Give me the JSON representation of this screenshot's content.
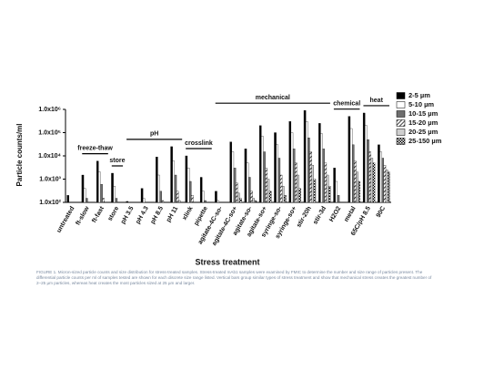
{
  "chart_data": {
    "type": "bar",
    "y_label": "Particle counts/ml",
    "x_label": "Stress treatment",
    "log_scale": true,
    "legend": "right",
    "annotations": [
      "freeze-thaw",
      "store",
      "pH",
      "crosslink",
      "mechanical",
      "chemical",
      "heat"
    ],
    "caption": "FIGURE 1. Micron-sized particle counts and size distribution for stress-treated samples. Stress-treated mAb1 samples were examined by FMIC to determine the number and size range of particles present. The differential particle counts per ml of samples tested are shown for each discrete size range listed. Vertical bars group similar types of stress treatment and show that mechanical stress creates the greatest number of 2–25 µm particles, whereas heat creates the most particles sized at 25 µm and larger.",
    "categories": [
      "untreated",
      "ft-slow",
      "ft-fast",
      "store",
      "pH 3.5",
      "pH 4.3",
      "pH 8.5",
      "pH 11",
      "xlink",
      "pipette",
      "agitate-4C-so-",
      "agitate-4C-so+",
      "agitate-so-",
      "agitate-so+",
      "syringe-so-",
      "syringe-so+",
      "stir-20h",
      "stir-3d",
      "H2O2",
      "metal",
      "65C/pH 8.5",
      "90C"
    ],
    "ylim": [
      100,
      1000000
    ],
    "yticks": [
      {
        "value": 100,
        "label": "1.0x10²"
      },
      {
        "value": 1000,
        "label": "1.0x10³"
      },
      {
        "value": 10000,
        "label": "1.0x10⁴"
      },
      {
        "value": 100000,
        "label": "1.0x10⁵"
      },
      {
        "value": 1000000,
        "label": "1.0x10⁶"
      }
    ],
    "series": [
      {
        "name": "2-5 µm",
        "color": "#000000",
        "pattern": "solid",
        "values": [
          200,
          1500,
          6000,
          1800,
          110,
          400,
          9000,
          25000,
          10000,
          1200,
          300,
          40000,
          20000,
          200000,
          100000,
          300000,
          900000,
          250000,
          3000,
          500000,
          700000,
          30000
        ]
      },
      {
        "name": "5-10 µm",
        "color": "#ffffff",
        "pattern": "solid",
        "values": [
          null,
          400,
          2000,
          500,
          null,
          150,
          1500,
          6000,
          3000,
          300,
          120,
          15000,
          5000,
          70000,
          30000,
          100000,
          300000,
          90000,
          800,
          150000,
          200000,
          15000
        ]
      },
      {
        "name": "10-15 µm",
        "color": "#6e6e6e",
        "pattern": "solid",
        "values": [
          null,
          150,
          600,
          150,
          null,
          null,
          300,
          1500,
          800,
          120,
          null,
          3000,
          1200,
          15000,
          8000,
          20000,
          60000,
          20000,
          200,
          30000,
          50000,
          8000
        ]
      },
      {
        "name": "15-20 µm",
        "color": "#555555",
        "pattern": "hatch",
        "values": [
          null,
          null,
          150,
          null,
          null,
          null,
          120,
          300,
          200,
          null,
          null,
          700,
          300,
          3000,
          1500,
          5000,
          15000,
          5000,
          null,
          6000,
          15000,
          4000
        ]
      },
      {
        "name": "20-25 µm",
        "color": "#cfcfcf",
        "pattern": "solid",
        "values": [
          null,
          null,
          null,
          null,
          null,
          null,
          null,
          120,
          null,
          null,
          null,
          250,
          150,
          1000,
          500,
          1500,
          4000,
          1500,
          null,
          2000,
          8000,
          2500
        ]
      },
      {
        "name": "25-150 µm",
        "color": "#555555",
        "pattern": "checker",
        "values": [
          null,
          null,
          null,
          null,
          null,
          null,
          null,
          null,
          null,
          null,
          null,
          150,
          120,
          300,
          200,
          400,
          1000,
          500,
          null,
          800,
          5000,
          2000
        ]
      }
    ]
  }
}
